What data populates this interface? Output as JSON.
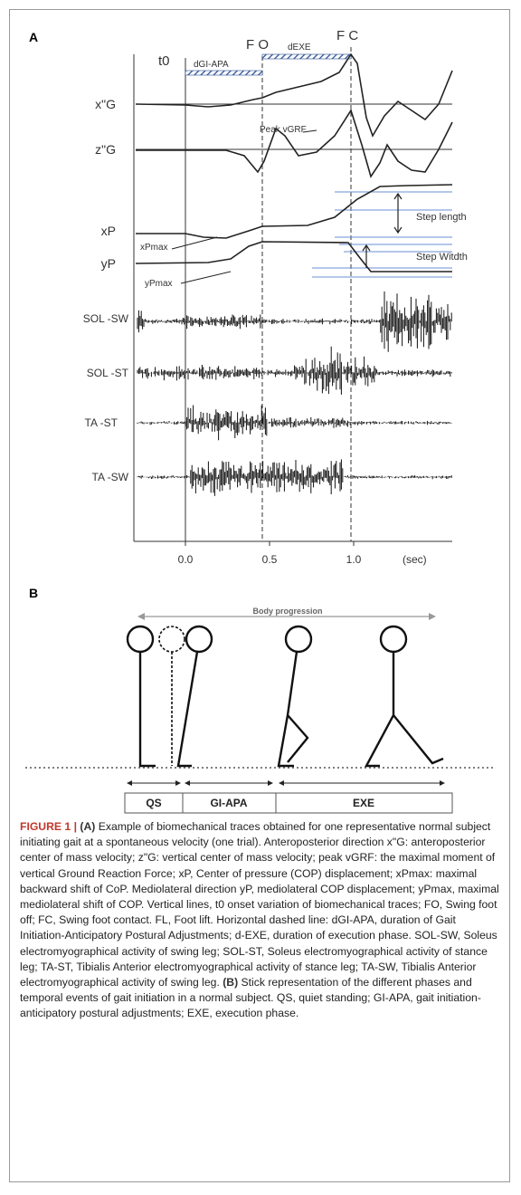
{
  "panel_a": {
    "label": "A",
    "events": {
      "t0": "t0",
      "fo": "F O",
      "fc": "F C",
      "dgi_apa": "dGI-APA",
      "dexe": "dEXE"
    },
    "traces": [
      "x\"G",
      "z\"G",
      "xP",
      "yP",
      "SOL -SW",
      "SOL -ST",
      "TA -ST",
      "TA -SW"
    ],
    "annotations": {
      "peak": "Peak vGRF",
      "step_length": "Step length",
      "step_width": "Step Witdth",
      "xpmax": "xPmax",
      "ypmax": "yPmax"
    },
    "xticks": [
      {
        "value": 0,
        "label": "0.0"
      },
      {
        "value": 0.5,
        "label": "0.5"
      },
      {
        "value": 1,
        "label": "1.0"
      }
    ],
    "xunit": "(sec)"
  },
  "panel_b": {
    "label": "B",
    "progression": "Body progression",
    "phases": [
      "QS",
      "GI-APA",
      "EXE"
    ]
  },
  "caption": {
    "figure_label": "FIGURE 1 |",
    "a_label": "(A)",
    "a_text": "Example of biomechanical traces obtained for one representative normal subject initiating gait at a spontaneous velocity (one trial). Anteroposterior direction x\"G: anteroposterior center of mass velocity; z\"G: vertical center of mass velocity; peak vGRF: the maximal moment of vertical Ground Reaction Force; xP, Center of pressure (COP) displacement; xPmax: maximal backward shift of CoP. Mediolateral direction yP, mediolateral COP displacement; yPmax, maximal mediolateral shift of COP. Vertical lines, t0 onset variation of biomechanical traces; FO, Swing foot off; FC, Swing foot contact. FL, Foot lift. Horizontal dashed line: dGI-APA, duration of Gait Initiation-Anticipatory Postural Adjustments; d-EXE, duration of execution phase. SOL-SW, Soleus electromyographical activity of swing leg; SOL-ST, Soleus electromyographical activity of stance leg; TA-ST, Tibialis Anterior electromyographical activity of stance leg; TA-SW, Tibialis Anterior electromyographical activity of swing leg.",
    "b_label": "(B)",
    "b_text": "Stick representation of the different phases and temporal events of gait initiation in a normal subject. QS, quiet standing; GI-APA, gait initiation-anticipatory postural adjustments; EXE, execution phase."
  }
}
